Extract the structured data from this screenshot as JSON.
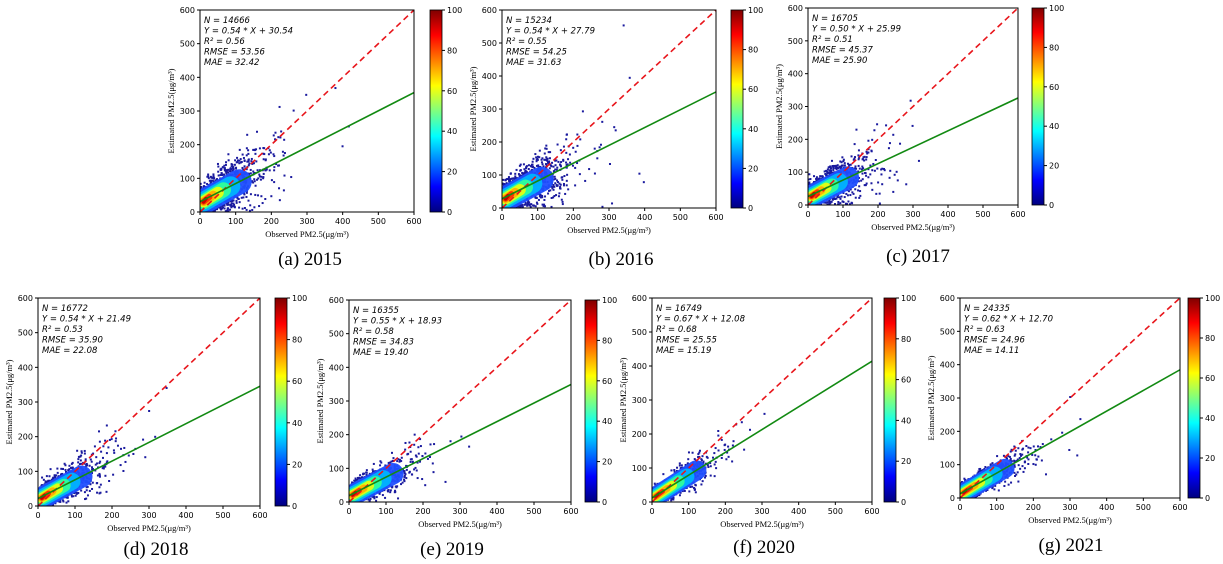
{
  "figure": {
    "panels": [
      {
        "caption": "(a) 2015",
        "stats": [
          "N = 14666",
          "Y = 0.54 * X + 30.54",
          "R² = 0.56",
          "RMSE = 53.56",
          "MAE = 32.42"
        ]
      },
      {
        "caption": "(b) 2016",
        "stats": [
          "N = 15234",
          "Y = 0.54 * X + 27.79",
          "R² = 0.55",
          "RMSE = 54.25",
          "MAE = 31.63"
        ]
      },
      {
        "caption": "(c) 2017",
        "stats": [
          "N = 16705",
          "Y = 0.50 * X + 25.99",
          "R² = 0.51",
          "RMSE = 45.37",
          "MAE = 25.90"
        ]
      },
      {
        "caption": "(d) 2018",
        "stats": [
          "N = 16772",
          "Y = 0.54 * X + 21.49",
          "R² = 0.53",
          "RMSE = 35.90",
          "MAE = 22.08"
        ]
      },
      {
        "caption": "(e) 2019",
        "stats": [
          "N = 16355",
          "Y = 0.55 * X + 18.93",
          "R² = 0.58",
          "RMSE = 34.83",
          "MAE = 19.40"
        ]
      },
      {
        "caption": "(f) 2020",
        "stats": [
          "N = 16749",
          "Y = 0.67 * X + 12.08",
          "R² = 0.68",
          "RMSE = 25.55",
          "MAE = 15.19"
        ]
      },
      {
        "caption": "(g) 2021",
        "stats": [
          "N = 24335",
          "Y = 0.62 * X + 12.70",
          "R² = 0.63",
          "RMSE = 24.96",
          "MAE = 14.11"
        ]
      }
    ]
  },
  "colors": {
    "identity_line": "#e8151b",
    "fit_line": "#128a12",
    "scatter_low": "#1a1a9e",
    "colormap": [
      "#00007f",
      "#0000ff",
      "#007fff",
      "#00ffff",
      "#7fff7f",
      "#ffff00",
      "#ff7f00",
      "#ff0000",
      "#7f0000"
    ]
  },
  "chart_data": [
    {
      "type": "scatter",
      "title": "(a) 2015",
      "xlabel": "Observed PM2.5(μg/m³)",
      "ylabel": "Estimated PM2.5(μg/m³)",
      "xlim": [
        0,
        600
      ],
      "ylim": [
        0,
        600
      ],
      "xticks": [
        "0",
        "100",
        "200",
        "300",
        "400",
        "500",
        "600"
      ],
      "yticks": [
        "0",
        "100",
        "200",
        "300",
        "400",
        "500",
        "600"
      ],
      "fit": {
        "slope": 0.54,
        "intercept": 30.54
      },
      "identity": true,
      "colorbar": {
        "min": 0,
        "max": 100,
        "ticks": [
          "0",
          "20",
          "40",
          "60",
          "80",
          "100"
        ]
      }
    },
    {
      "type": "scatter",
      "title": "(b) 2016",
      "xlabel": "Observed PM2.5(μg/m³)",
      "ylabel": "Estimated PM2.5(μg/m³)",
      "xlim": [
        0,
        600
      ],
      "ylim": [
        0,
        600
      ],
      "xticks": [
        "0",
        "100",
        "200",
        "300",
        "400",
        "500",
        "600"
      ],
      "yticks": [
        "0",
        "100",
        "200",
        "300",
        "400",
        "500",
        "600"
      ],
      "fit": {
        "slope": 0.54,
        "intercept": 27.79
      },
      "identity": true,
      "colorbar": {
        "min": 0,
        "max": 100,
        "ticks": [
          "0",
          "20",
          "40",
          "60",
          "80",
          "100"
        ]
      }
    },
    {
      "type": "scatter",
      "title": "(c) 2017",
      "xlabel": "Observed PM2.5(μg/m³)",
      "ylabel": "Estimated PM2.5(μg/m³)",
      "xlim": [
        0,
        600
      ],
      "ylim": [
        0,
        600
      ],
      "xticks": [
        "0",
        "100",
        "200",
        "300",
        "400",
        "500",
        "600"
      ],
      "yticks": [
        "0",
        "100",
        "200",
        "300",
        "400",
        "500",
        "600"
      ],
      "fit": {
        "slope": 0.5,
        "intercept": 25.99
      },
      "identity": true,
      "colorbar": {
        "min": 0,
        "max": 100,
        "ticks": [
          "0",
          "20",
          "40",
          "60",
          "80",
          "100"
        ]
      }
    },
    {
      "type": "scatter",
      "title": "(d) 2018",
      "xlabel": "Observed PM2.5(μg/m³)",
      "ylabel": "Estimated PM2.5(μg/m³)",
      "xlim": [
        0,
        600
      ],
      "ylim": [
        0,
        600
      ],
      "xticks": [
        "0",
        "100",
        "200",
        "300",
        "400",
        "500",
        "600"
      ],
      "yticks": [
        "0",
        "100",
        "200",
        "300",
        "400",
        "500",
        "600"
      ],
      "fit": {
        "slope": 0.54,
        "intercept": 21.49
      },
      "identity": true,
      "colorbar": {
        "min": 0,
        "max": 100,
        "ticks": [
          "0",
          "20",
          "40",
          "60",
          "80",
          "100"
        ]
      }
    },
    {
      "type": "scatter",
      "title": "(e) 2019",
      "xlabel": "Observed PM2.5(μg/m³)",
      "ylabel": "Estimated PM2.5(μg/m³)",
      "xlim": [
        0,
        600
      ],
      "ylim": [
        0,
        600
      ],
      "xticks": [
        "0",
        "100",
        "200",
        "300",
        "400",
        "500",
        "600"
      ],
      "yticks": [
        "0",
        "100",
        "200",
        "300",
        "400",
        "500",
        "600"
      ],
      "fit": {
        "slope": 0.55,
        "intercept": 18.93
      },
      "identity": true,
      "colorbar": {
        "min": 0,
        "max": 100,
        "ticks": [
          "0",
          "20",
          "40",
          "60",
          "80",
          "100"
        ]
      }
    },
    {
      "type": "scatter",
      "title": "(f) 2020",
      "xlabel": "Observed PM2.5(μg/m³)",
      "ylabel": "Estimated PM2.5(μg/m³)",
      "xlim": [
        0,
        600
      ],
      "ylim": [
        0,
        600
      ],
      "xticks": [
        "0",
        "100",
        "200",
        "300",
        "400",
        "500",
        "600"
      ],
      "yticks": [
        "0",
        "100",
        "200",
        "300",
        "400",
        "500",
        "600"
      ],
      "fit": {
        "slope": 0.67,
        "intercept": 12.08
      },
      "identity": true,
      "colorbar": {
        "min": 0,
        "max": 100,
        "ticks": [
          "0",
          "20",
          "40",
          "60",
          "80",
          "100"
        ]
      }
    },
    {
      "type": "scatter",
      "title": "(g) 2021",
      "xlabel": "Observed PM2.5(μg/m³)",
      "ylabel": "Estimated PM2.5(μg/m³)",
      "xlim": [
        0,
        600
      ],
      "ylim": [
        0,
        600
      ],
      "xticks": [
        "0",
        "100",
        "200",
        "300",
        "400",
        "500",
        "600"
      ],
      "yticks": [
        "0",
        "100",
        "200",
        "300",
        "400",
        "500",
        "600"
      ],
      "fit": {
        "slope": 0.62,
        "intercept": 12.7
      },
      "identity": true,
      "colorbar": {
        "min": 0,
        "max": 100,
        "ticks": [
          "0",
          "20",
          "40",
          "60",
          "80",
          "100"
        ]
      }
    }
  ]
}
